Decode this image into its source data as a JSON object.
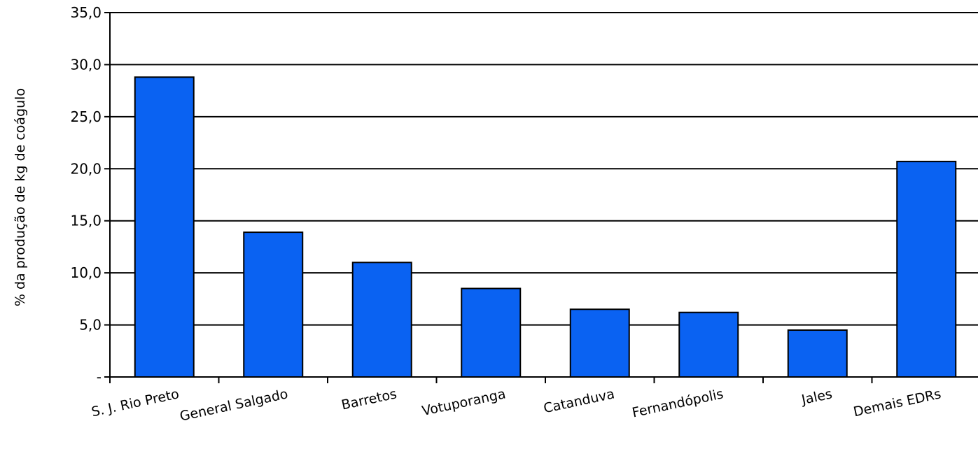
{
  "chart_data": {
    "type": "bar",
    "title": "",
    "xlabel": "",
    "ylabel": "% da produção de kg de coágulo",
    "categories": [
      "S. J. Rio Preto",
      "General Salgado",
      "Barretos",
      "Votuporanga",
      "Catanduva",
      "Fernandópolis",
      "Jales",
      "Demais EDRs"
    ],
    "values": [
      28.8,
      13.9,
      11.0,
      8.5,
      6.5,
      6.2,
      4.5,
      20.7
    ],
    "ylim": [
      0,
      35
    ],
    "yticks": [
      0,
      5,
      10,
      15,
      20,
      25,
      30,
      35
    ],
    "ytick_labels": [
      "-",
      "5,0",
      "10,0",
      "15,0",
      "20,0",
      "25,0",
      "30,0",
      "35,0"
    ],
    "grid": true,
    "legend": "none",
    "colors": {
      "bar_fill": "#0a62f2",
      "bar_stroke": "#000000",
      "gridline": "#000000",
      "axis": "#000000"
    }
  }
}
